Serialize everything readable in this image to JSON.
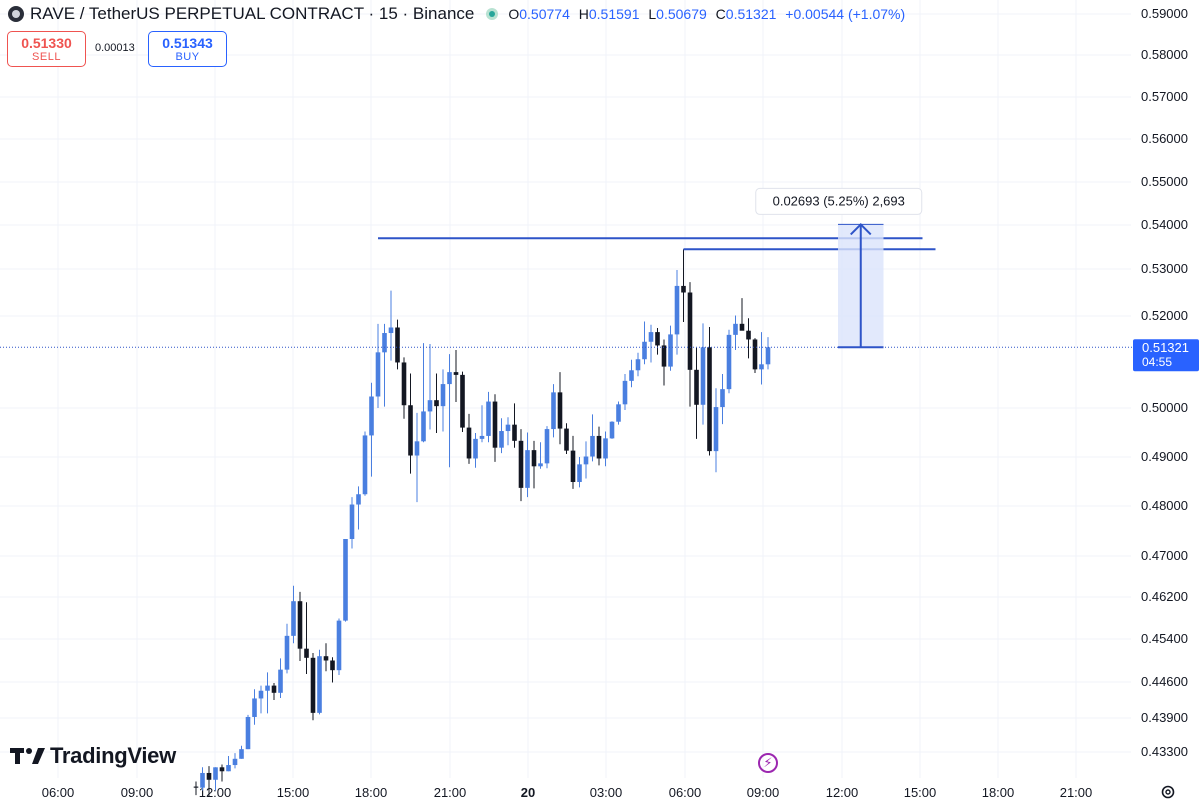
{
  "header": {
    "symbol_title": "RAVE / TetherUS PERPETUAL CONTRACT · 15 · Binance",
    "ohlc": {
      "o_label": "O",
      "o": "0.50774",
      "h_label": "H",
      "h": "0.51591",
      "l_label": "L",
      "l": "0.50679",
      "c_label": "C",
      "c": "0.51321",
      "change": "+0.00544 (+1.07%)"
    },
    "icons": {
      "symbol_logo": "coin-logo-icon",
      "live_status": "live-dot-icon"
    }
  },
  "trade": {
    "sell_price": "0.51330",
    "sell_label": "SELL",
    "spread": "0.00013",
    "buy_price": "0.51343",
    "buy_label": "BUY"
  },
  "branding": {
    "logo_text": "TradingView"
  },
  "footer": {
    "icons": [
      "lightning-icon",
      "gear-icon"
    ]
  },
  "colors": {
    "up": "#4a7fe0",
    "down": "#131722",
    "accent": "#2962ff",
    "drawing": "#2e54c8",
    "sell": "#ef5350",
    "range_fill": "#dbe4fb",
    "grid": "#f0f3fa",
    "label_bg": "#2962ff"
  },
  "chart_data": {
    "type": "candlestick",
    "timeframe": "15",
    "price_ticks": [
      "0.59000",
      "0.58000",
      "0.57000",
      "0.56000",
      "0.55000",
      "0.54000",
      "0.53000",
      "0.52000",
      "0.50000",
      "0.49000",
      "0.48000",
      "0.47000",
      "0.46200",
      "0.45400",
      "0.44600",
      "0.43900",
      "0.43300"
    ],
    "time_ticks": [
      "06:00",
      "09:00",
      "12:00",
      "15:00",
      "18:00",
      "21:00",
      "20",
      "03:00",
      "06:00",
      "09:00",
      "12:00",
      "15:00",
      "18:00",
      "21:00"
    ],
    "time_ticks_bold": [
      "20"
    ],
    "last_price": {
      "value": "0.51321",
      "countdown": "04:55"
    },
    "measure_label": "0.02693 (5.25%) 2,693",
    "measure": {
      "from": 0.51321,
      "to": 0.54014,
      "time_from": "12:00",
      "time_to": "13:45"
    },
    "horizontal_levels": [
      {
        "price": 0.537,
        "time_from": "18:00",
        "time_to": "15:15"
      },
      {
        "price": 0.5345,
        "time_from": "06:00",
        "time_to": "15:45"
      }
    ],
    "candles": [
      [
        0.4269,
        0.4278,
        0.4254,
        0.4267
      ],
      [
        0.4267,
        0.4303,
        0.4262,
        0.4293
      ],
      [
        0.4293,
        0.4305,
        0.4251,
        0.4281
      ],
      [
        0.4281,
        0.4303,
        0.4262,
        0.4303
      ],
      [
        0.4303,
        0.4308,
        0.4278,
        0.4296
      ],
      [
        0.4296,
        0.4323,
        0.4296,
        0.4307
      ],
      [
        0.4307,
        0.4328,
        0.4301,
        0.4318
      ],
      [
        0.4318,
        0.4341,
        0.4318,
        0.4335
      ],
      [
        0.4335,
        0.4396,
        0.4335,
        0.4392
      ],
      [
        0.4392,
        0.4446,
        0.4378,
        0.4428
      ],
      [
        0.4428,
        0.4453,
        0.4399,
        0.4443
      ],
      [
        0.4443,
        0.4478,
        0.4399,
        0.4453
      ],
      [
        0.4453,
        0.4458,
        0.4425,
        0.4439
      ],
      [
        0.4439,
        0.4504,
        0.4429,
        0.4483
      ],
      [
        0.4483,
        0.4569,
        0.4476,
        0.4546
      ],
      [
        0.4546,
        0.4642,
        0.4532,
        0.4612
      ],
      [
        0.4612,
        0.463,
        0.4499,
        0.4522
      ],
      [
        0.4522,
        0.461,
        0.4475,
        0.4505
      ],
      [
        0.4505,
        0.4514,
        0.4386,
        0.44
      ],
      [
        0.44,
        0.452,
        0.4397,
        0.4508
      ],
      [
        0.4508,
        0.4532,
        0.448,
        0.45
      ],
      [
        0.45,
        0.4506,
        0.4459,
        0.4482
      ],
      [
        0.4482,
        0.4579,
        0.4473,
        0.4575
      ],
      [
        0.4575,
        0.4734,
        0.4573,
        0.4734
      ],
      [
        0.4734,
        0.4818,
        0.4715,
        0.4803
      ],
      [
        0.4803,
        0.484,
        0.4753,
        0.4824
      ],
      [
        0.4824,
        0.4952,
        0.4821,
        0.4944
      ],
      [
        0.4944,
        0.5055,
        0.486,
        0.5025
      ],
      [
        0.5025,
        0.5183,
        0.5,
        0.5121
      ],
      [
        0.5121,
        0.5183,
        0.5003,
        0.5163
      ],
      [
        0.5163,
        0.5254,
        0.5103,
        0.5175
      ],
      [
        0.5175,
        0.5192,
        0.5084,
        0.5099
      ],
      [
        0.5099,
        0.511,
        0.4978,
        0.5006
      ],
      [
        0.5006,
        0.5075,
        0.4866,
        0.4903
      ],
      [
        0.4903,
        0.499,
        0.4808,
        0.4932
      ],
      [
        0.4932,
        0.5141,
        0.493,
        0.4993
      ],
      [
        0.4993,
        0.5139,
        0.4956,
        0.5017
      ],
      [
        0.5017,
        0.5075,
        0.4949,
        0.5004
      ],
      [
        0.5004,
        0.5084,
        0.4952,
        0.5052
      ],
      [
        0.5052,
        0.5117,
        0.4879,
        0.5078
      ],
      [
        0.5078,
        0.5126,
        0.5013,
        0.5072
      ],
      [
        0.5072,
        0.5079,
        0.4951,
        0.496
      ],
      [
        0.496,
        0.4988,
        0.4886,
        0.4897
      ],
      [
        0.4897,
        0.4949,
        0.4878,
        0.4937
      ],
      [
        0.4937,
        0.5006,
        0.493,
        0.4943
      ],
      [
        0.4943,
        0.5035,
        0.493,
        0.5014
      ],
      [
        0.5014,
        0.503,
        0.489,
        0.4919
      ],
      [
        0.4919,
        0.4979,
        0.4908,
        0.4953
      ],
      [
        0.4953,
        0.4981,
        0.4924,
        0.4966
      ],
      [
        0.4966,
        0.501,
        0.4919,
        0.4933
      ],
      [
        0.4933,
        0.4957,
        0.481,
        0.4837
      ],
      [
        0.4837,
        0.495,
        0.4818,
        0.4914
      ],
      [
        0.4914,
        0.4933,
        0.4836,
        0.4881
      ],
      [
        0.4881,
        0.493,
        0.4876,
        0.4887
      ],
      [
        0.4887,
        0.4963,
        0.4877,
        0.4957
      ],
      [
        0.4957,
        0.5052,
        0.494,
        0.5034
      ],
      [
        0.5034,
        0.5078,
        0.4926,
        0.4958
      ],
      [
        0.4958,
        0.4969,
        0.4906,
        0.4913
      ],
      [
        0.4913,
        0.4943,
        0.4835,
        0.4849
      ],
      [
        0.4849,
        0.49,
        0.4838,
        0.4885
      ],
      [
        0.4885,
        0.4932,
        0.4856,
        0.4901
      ],
      [
        0.4901,
        0.4987,
        0.4891,
        0.4943
      ],
      [
        0.4943,
        0.4962,
        0.4883,
        0.4897
      ],
      [
        0.4897,
        0.4952,
        0.4881,
        0.4938
      ],
      [
        0.4938,
        0.4973,
        0.4937,
        0.4972
      ],
      [
        0.4972,
        0.5014,
        0.4966,
        0.5008
      ],
      [
        0.5008,
        0.5074,
        0.4996,
        0.5059
      ],
      [
        0.5059,
        0.5105,
        0.5045,
        0.5082
      ],
      [
        0.5082,
        0.512,
        0.5069,
        0.5106
      ],
      [
        0.5106,
        0.5188,
        0.5095,
        0.5144
      ],
      [
        0.5144,
        0.5181,
        0.5099,
        0.5165
      ],
      [
        0.5165,
        0.5174,
        0.5116,
        0.5136
      ],
      [
        0.5136,
        0.5149,
        0.5049,
        0.509
      ],
      [
        0.509,
        0.5179,
        0.5081,
        0.516
      ],
      [
        0.516,
        0.5298,
        0.5116,
        0.5264
      ],
      [
        0.5264,
        0.5345,
        0.5187,
        0.525
      ],
      [
        0.525,
        0.5272,
        0.5003,
        0.5083
      ],
      [
        0.5083,
        0.5131,
        0.4937,
        0.5007
      ],
      [
        0.5007,
        0.5184,
        0.4966,
        0.5132
      ],
      [
        0.5132,
        0.5176,
        0.4903,
        0.4912
      ],
      [
        0.4912,
        0.5043,
        0.4869,
        0.5002
      ],
      [
        0.5002,
        0.5074,
        0.4967,
        0.5041
      ],
      [
        0.5041,
        0.517,
        0.5032,
        0.5159
      ],
      [
        0.5159,
        0.5201,
        0.5126,
        0.5183
      ],
      [
        0.5183,
        0.5238,
        0.5173,
        0.5168
      ],
      [
        0.5168,
        0.5195,
        0.5108,
        0.5149
      ],
      [
        0.5149,
        0.5152,
        0.5076,
        0.5084
      ],
      [
        0.5084,
        0.5165,
        0.5051,
        0.5095
      ],
      [
        0.5095,
        0.5154,
        0.5084,
        0.5132
      ]
    ]
  }
}
